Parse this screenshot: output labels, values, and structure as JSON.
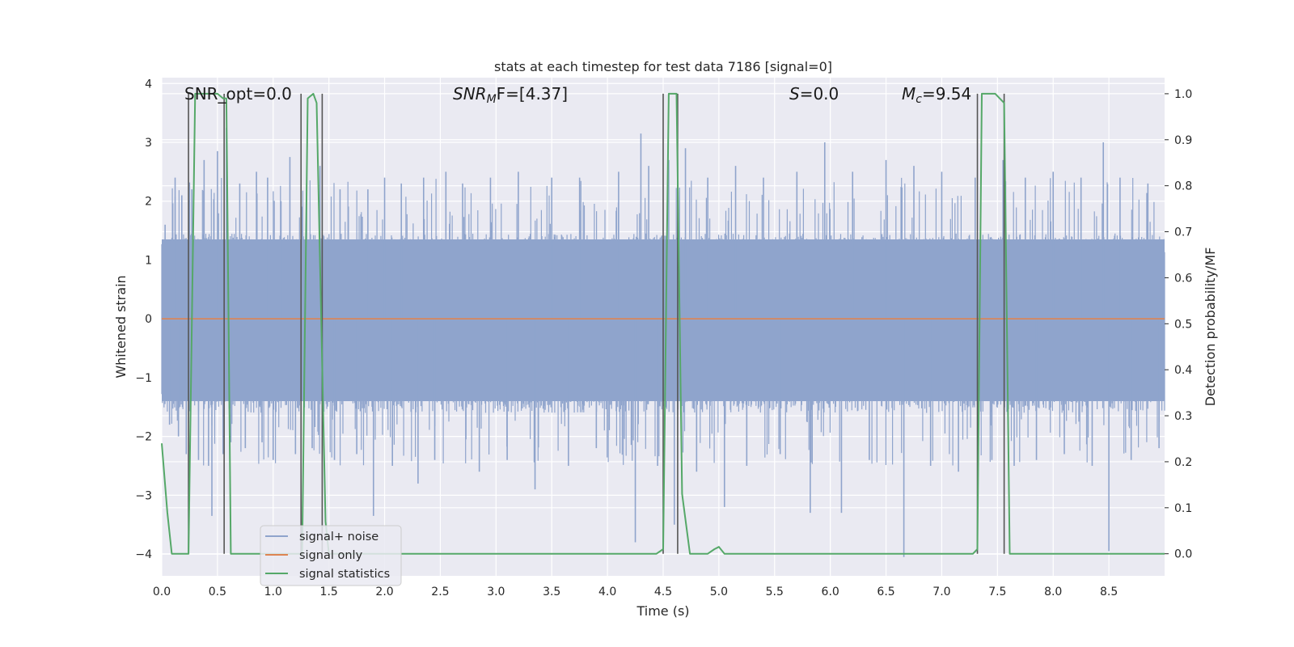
{
  "chart_data": {
    "type": "line",
    "title": "stats at each timestep for test data 7186 [signal=0]",
    "xlabel": "Time (s)",
    "ylabel_left": "Whitened strain",
    "ylabel_right": "Detection probability/MF",
    "xlim": [
      0.0,
      9.0
    ],
    "ylim_left": [
      -4.37,
      4.1
    ],
    "ylim_right": [
      -0.048,
      1.035
    ],
    "x_ticks": [
      "0.0",
      "0.5",
      "1.0",
      "1.5",
      "2.0",
      "2.5",
      "3.0",
      "3.5",
      "4.0",
      "4.5",
      "5.0",
      "5.5",
      "6.0",
      "6.5",
      "7.0",
      "7.5",
      "8.0",
      "8.5"
    ],
    "x_tick_values": [
      0,
      0.5,
      1,
      1.5,
      2,
      2.5,
      3,
      3.5,
      4,
      4.5,
      5,
      5.5,
      6,
      6.5,
      7,
      7.5,
      8,
      8.5
    ],
    "y_left_ticks": [
      "−4",
      "−3",
      "−2",
      "−1",
      "0",
      "1",
      "2",
      "3",
      "4"
    ],
    "y_left_tick_values": [
      -4,
      -3,
      -2,
      -1,
      0,
      1,
      2,
      3,
      4
    ],
    "y_right_ticks": [
      "0.0",
      "0.1",
      "0.2",
      "0.3",
      "0.4",
      "0.5",
      "0.6",
      "0.7",
      "0.8",
      "0.9",
      "1.0"
    ],
    "y_right_tick_values": [
      0,
      0.1,
      0.2,
      0.3,
      0.4,
      0.5,
      0.6,
      0.7,
      0.8,
      0.9,
      1.0
    ],
    "annotations": {
      "snr_opt": "SNR_opt=0.0",
      "snr_mf_base": "SNR",
      "snr_mf_sub": "M",
      "snr_mf_tail": "F=[4.37]",
      "s_italic": "S",
      "s_tail": "=0.0",
      "mc_base": "M",
      "mc_sub": "c",
      "mc_tail": "=9.54"
    },
    "legend": {
      "position": "lower-left",
      "entries": [
        "signal+ noise",
        "signal only",
        "signal statistics"
      ]
    },
    "colors": {
      "noise": "#8fa4cc",
      "signal_only": "#dd8452",
      "statistics": "#55a868",
      "vlines": "#555555",
      "background": "#eaeaf2",
      "grid": "#ffffff"
    },
    "series": [
      {
        "name": "signal+ noise",
        "axis": "left",
        "kind": "noise-band",
        "typical_range": [
          -1.6,
          1.45
        ],
        "spikes": [
          [
            0.03,
            1.6
          ],
          [
            0.07,
            -1.8
          ],
          [
            0.12,
            2.4
          ],
          [
            0.15,
            -2.0
          ],
          [
            0.18,
            2.1
          ],
          [
            0.22,
            -2.3
          ],
          [
            0.27,
            2.2
          ],
          [
            0.33,
            -2.4
          ],
          [
            0.38,
            2.7
          ],
          [
            0.42,
            -2.5
          ],
          [
            0.45,
            -3.35
          ],
          [
            0.5,
            2.85
          ],
          [
            0.55,
            -2.3
          ],
          [
            0.58,
            3.25
          ],
          [
            0.62,
            -2.1
          ],
          [
            0.7,
            2.3
          ],
          [
            0.75,
            -2.2
          ],
          [
            0.85,
            2.5
          ],
          [
            0.9,
            -2.1
          ],
          [
            0.95,
            2.4
          ],
          [
            1.0,
            -2.4
          ],
          [
            1.07,
            2.0
          ],
          [
            1.15,
            2.75
          ],
          [
            1.2,
            -2.3
          ],
          [
            1.3,
            2.3
          ],
          [
            1.35,
            -2.2
          ],
          [
            1.42,
            2.6
          ],
          [
            1.55,
            -2.4
          ],
          [
            1.6,
            2.2
          ],
          [
            1.75,
            -2.3
          ],
          [
            1.85,
            2.2
          ],
          [
            1.9,
            -3.35
          ],
          [
            2.0,
            2.4
          ],
          [
            2.07,
            -2.5
          ],
          [
            2.15,
            2.3
          ],
          [
            2.3,
            -2.8
          ],
          [
            2.35,
            2.4
          ],
          [
            2.45,
            -2.4
          ],
          [
            2.55,
            2.5
          ],
          [
            2.7,
            2.3
          ],
          [
            2.85,
            -2.6
          ],
          [
            2.95,
            2.4
          ],
          [
            3.1,
            -2.4
          ],
          [
            3.2,
            2.5
          ],
          [
            3.35,
            -2.9
          ],
          [
            3.5,
            2.4
          ],
          [
            3.65,
            -2.5
          ],
          [
            3.75,
            2.4
          ],
          [
            3.9,
            -2.2
          ],
          [
            4.1,
            2.5
          ],
          [
            4.25,
            -3.8
          ],
          [
            4.3,
            3.15
          ],
          [
            4.37,
            2.6
          ],
          [
            4.45,
            -2.5
          ],
          [
            4.55,
            2.7
          ],
          [
            4.6,
            -3.5
          ],
          [
            4.7,
            2.9
          ],
          [
            4.8,
            -2.6
          ],
          [
            4.9,
            2.4
          ],
          [
            5.05,
            -3.2
          ],
          [
            5.15,
            2.6
          ],
          [
            5.25,
            -2.5
          ],
          [
            5.4,
            2.4
          ],
          [
            5.55,
            -2.3
          ],
          [
            5.7,
            2.5
          ],
          [
            5.82,
            -3.3
          ],
          [
            5.95,
            3.0
          ],
          [
            6.1,
            -3.3
          ],
          [
            6.2,
            2.5
          ],
          [
            6.35,
            -2.4
          ],
          [
            6.5,
            2.7
          ],
          [
            6.66,
            -4.05
          ],
          [
            6.75,
            2.6
          ],
          [
            6.9,
            -2.5
          ],
          [
            7.0,
            2.5
          ],
          [
            7.15,
            -2.6
          ],
          [
            7.3,
            2.4
          ],
          [
            7.45,
            -2.4
          ],
          [
            7.55,
            2.7
          ],
          [
            7.65,
            -2.5
          ],
          [
            7.75,
            2.4
          ],
          [
            7.85,
            -2.4
          ],
          [
            8.0,
            2.5
          ],
          [
            8.1,
            -2.3
          ],
          [
            8.25,
            2.4
          ],
          [
            8.35,
            -2.5
          ],
          [
            8.45,
            3.0
          ],
          [
            8.5,
            -3.95
          ],
          [
            8.6,
            2.4
          ],
          [
            8.7,
            -2.4
          ],
          [
            8.85,
            2.3
          ],
          [
            8.95,
            -2.2
          ]
        ]
      },
      {
        "name": "signal only",
        "axis": "left",
        "x": [
          0.0,
          9.0
        ],
        "y": [
          0.0,
          0.0
        ]
      },
      {
        "name": "signal statistics",
        "axis": "right",
        "x": [
          0.0,
          0.05,
          0.09,
          0.24,
          0.3,
          0.5,
          0.55,
          0.58,
          0.62,
          0.93,
          1.26,
          1.31,
          1.36,
          1.39,
          1.47,
          1.5,
          4.44,
          4.5,
          4.55,
          4.62,
          4.67,
          4.74,
          4.77,
          4.9,
          4.96,
          5.0,
          5.05,
          7.28,
          7.32,
          7.36,
          7.48,
          7.56,
          7.61,
          9.0
        ],
        "y": [
          0.24,
          0.09,
          0.0,
          0.0,
          1.0,
          1.0,
          0.99,
          0.99,
          0.0,
          0.0,
          0.0,
          0.99,
          1.0,
          0.98,
          0.07,
          0.0,
          0.0,
          0.01,
          1.0,
          1.0,
          0.13,
          0.0,
          0.0,
          0.0,
          0.01,
          0.015,
          0.0,
          0.0,
          0.01,
          1.0,
          1.0,
          0.98,
          0.0,
          0.0
        ]
      }
    ],
    "vlines": {
      "axis": "right",
      "from": 0.0,
      "to": 1.0,
      "x": [
        0.24,
        0.56,
        1.25,
        1.44,
        4.5,
        4.63,
        7.32,
        7.56
      ]
    }
  }
}
